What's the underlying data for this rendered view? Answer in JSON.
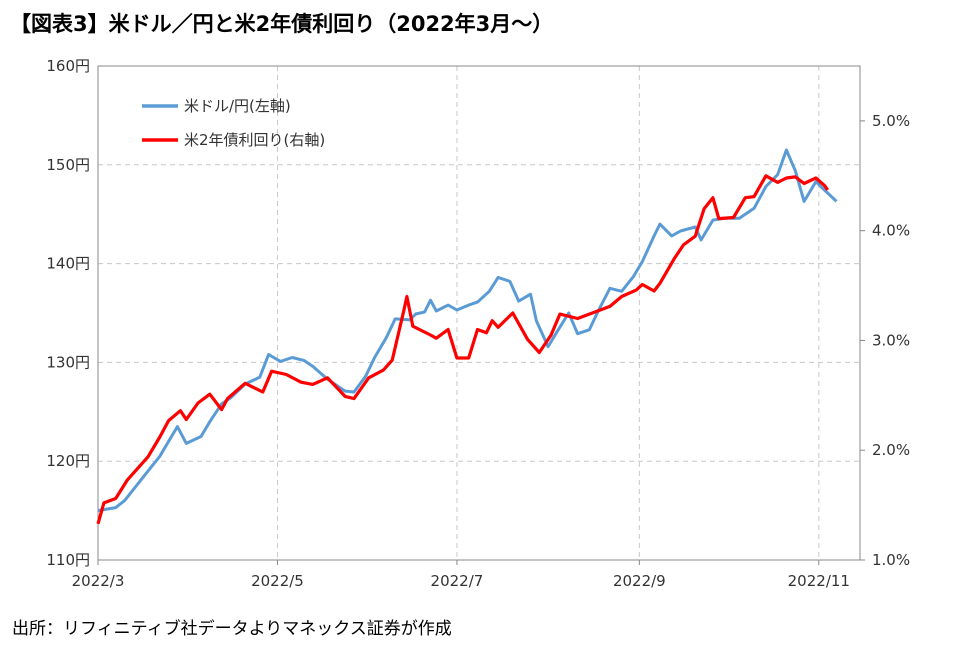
{
  "title": "【図表3】米ドル／円と米2年債利回り（2022年3月～）",
  "source": "出所：リフィニティブ社データよりマネックス証券が作成",
  "colors": {
    "usdjpy": "#5b9bd5",
    "yield": "#ff0000",
    "grid": "#c8c8c8",
    "axis": "#888888"
  },
  "chart_data": {
    "type": "line",
    "x_ticks": [
      "2022/3",
      "2022/5",
      "2022/7",
      "2022/9",
      "2022/11"
    ],
    "x_range": [
      "2022-03-01",
      "2022-11-15"
    ],
    "y_left": {
      "ticks": [
        "110円",
        "120円",
        "130円",
        "140円",
        "150円",
        "160円"
      ],
      "min": 110,
      "max": 160
    },
    "y_right": {
      "ticks": [
        "1.0%",
        "2.0%",
        "3.0%",
        "4.0%",
        "5.0%"
      ],
      "min": 1.0,
      "max": 5.5
    },
    "grid": true,
    "legend_position": "top-left",
    "series": [
      {
        "name": "米ドル/円(左軸)",
        "axis": "left",
        "points": [
          [
            "2022-03-01",
            115.0
          ],
          [
            "2022-03-07",
            115.3
          ],
          [
            "2022-03-10",
            116.0
          ],
          [
            "2022-03-14",
            117.5
          ],
          [
            "2022-03-18",
            119.0
          ],
          [
            "2022-03-22",
            120.5
          ],
          [
            "2022-03-25",
            122.0
          ],
          [
            "2022-03-28",
            123.5
          ],
          [
            "2022-03-31",
            121.8
          ],
          [
            "2022-04-05",
            122.5
          ],
          [
            "2022-04-08",
            124.0
          ],
          [
            "2022-04-12",
            125.8
          ],
          [
            "2022-04-15",
            126.4
          ],
          [
            "2022-04-20",
            127.8
          ],
          [
            "2022-04-25",
            128.5
          ],
          [
            "2022-04-28",
            130.8
          ],
          [
            "2022-05-02",
            130.1
          ],
          [
            "2022-05-06",
            130.5
          ],
          [
            "2022-05-10",
            130.2
          ],
          [
            "2022-05-13",
            129.6
          ],
          [
            "2022-05-18",
            128.3
          ],
          [
            "2022-05-24",
            127.1
          ],
          [
            "2022-05-27",
            127.0
          ],
          [
            "2022-05-31",
            128.6
          ],
          [
            "2022-06-03",
            130.5
          ],
          [
            "2022-06-07",
            132.5
          ],
          [
            "2022-06-10",
            134.4
          ],
          [
            "2022-06-15",
            134.3
          ],
          [
            "2022-06-17",
            134.9
          ],
          [
            "2022-06-20",
            135.1
          ],
          [
            "2022-06-22",
            136.3
          ],
          [
            "2022-06-24",
            135.2
          ],
          [
            "2022-06-28",
            135.8
          ],
          [
            "2022-07-01",
            135.3
          ],
          [
            "2022-07-05",
            135.8
          ],
          [
            "2022-07-08",
            136.1
          ],
          [
            "2022-07-12",
            137.2
          ],
          [
            "2022-07-15",
            138.6
          ],
          [
            "2022-07-19",
            138.2
          ],
          [
            "2022-07-22",
            136.2
          ],
          [
            "2022-07-26",
            136.9
          ],
          [
            "2022-07-28",
            134.2
          ],
          [
            "2022-08-01",
            131.6
          ],
          [
            "2022-08-04",
            133.1
          ],
          [
            "2022-08-08",
            135.0
          ],
          [
            "2022-08-11",
            132.9
          ],
          [
            "2022-08-15",
            133.3
          ],
          [
            "2022-08-18",
            135.2
          ],
          [
            "2022-08-22",
            137.5
          ],
          [
            "2022-08-26",
            137.2
          ],
          [
            "2022-08-30",
            138.7
          ],
          [
            "2022-09-02",
            140.2
          ],
          [
            "2022-09-06",
            142.8
          ],
          [
            "2022-09-08",
            144.0
          ],
          [
            "2022-09-12",
            142.8
          ],
          [
            "2022-09-15",
            143.3
          ],
          [
            "2022-09-20",
            143.7
          ],
          [
            "2022-09-22",
            142.4
          ],
          [
            "2022-09-26",
            144.4
          ],
          [
            "2022-09-30",
            144.6
          ],
          [
            "2022-10-05",
            144.6
          ],
          [
            "2022-10-10",
            145.6
          ],
          [
            "2022-10-14",
            147.8
          ],
          [
            "2022-10-18",
            149.0
          ],
          [
            "2022-10-21",
            151.5
          ],
          [
            "2022-10-24",
            149.4
          ],
          [
            "2022-10-27",
            146.3
          ],
          [
            "2022-10-31",
            148.3
          ],
          [
            "2022-11-02",
            147.7
          ],
          [
            "2022-11-07",
            146.3
          ]
        ]
      },
      {
        "name": "米2年債利回り(右軸)",
        "axis": "right",
        "points": [
          [
            "2022-03-01",
            1.33
          ],
          [
            "2022-03-03",
            1.52
          ],
          [
            "2022-03-07",
            1.56
          ],
          [
            "2022-03-11",
            1.73
          ],
          [
            "2022-03-15",
            1.85
          ],
          [
            "2022-03-18",
            1.94
          ],
          [
            "2022-03-22",
            2.12
          ],
          [
            "2022-03-25",
            2.27
          ],
          [
            "2022-03-29",
            2.36
          ],
          [
            "2022-03-31",
            2.28
          ],
          [
            "2022-04-04",
            2.43
          ],
          [
            "2022-04-08",
            2.51
          ],
          [
            "2022-04-12",
            2.37
          ],
          [
            "2022-04-14",
            2.47
          ],
          [
            "2022-04-20",
            2.61
          ],
          [
            "2022-04-26",
            2.53
          ],
          [
            "2022-04-29",
            2.72
          ],
          [
            "2022-05-04",
            2.69
          ],
          [
            "2022-05-09",
            2.62
          ],
          [
            "2022-05-13",
            2.6
          ],
          [
            "2022-05-18",
            2.66
          ],
          [
            "2022-05-24",
            2.49
          ],
          [
            "2022-05-27",
            2.47
          ],
          [
            "2022-06-01",
            2.66
          ],
          [
            "2022-06-06",
            2.73
          ],
          [
            "2022-06-09",
            2.82
          ],
          [
            "2022-06-13",
            3.28
          ],
          [
            "2022-06-14",
            3.4
          ],
          [
            "2022-06-16",
            3.13
          ],
          [
            "2022-06-22",
            3.05
          ],
          [
            "2022-06-24",
            3.02
          ],
          [
            "2022-06-28",
            3.1
          ],
          [
            "2022-07-01",
            2.84
          ],
          [
            "2022-07-05",
            2.84
          ],
          [
            "2022-07-08",
            3.1
          ],
          [
            "2022-07-11",
            3.07
          ],
          [
            "2022-07-13",
            3.18
          ],
          [
            "2022-07-15",
            3.12
          ],
          [
            "2022-07-20",
            3.25
          ],
          [
            "2022-07-25",
            3.01
          ],
          [
            "2022-07-29",
            2.89
          ],
          [
            "2022-08-02",
            3.05
          ],
          [
            "2022-08-05",
            3.24
          ],
          [
            "2022-08-11",
            3.2
          ],
          [
            "2022-08-16",
            3.25
          ],
          [
            "2022-08-22",
            3.31
          ],
          [
            "2022-08-26",
            3.4
          ],
          [
            "2022-08-31",
            3.46
          ],
          [
            "2022-09-02",
            3.51
          ],
          [
            "2022-09-06",
            3.45
          ],
          [
            "2022-09-08",
            3.52
          ],
          [
            "2022-09-13",
            3.75
          ],
          [
            "2022-09-16",
            3.87
          ],
          [
            "2022-09-20",
            3.95
          ],
          [
            "2022-09-23",
            4.2
          ],
          [
            "2022-09-26",
            4.3
          ],
          [
            "2022-09-28",
            4.11
          ],
          [
            "2022-10-03",
            4.12
          ],
          [
            "2022-10-07",
            4.3
          ],
          [
            "2022-10-10",
            4.31
          ],
          [
            "2022-10-14",
            4.5
          ],
          [
            "2022-10-18",
            4.44
          ],
          [
            "2022-10-21",
            4.48
          ],
          [
            "2022-10-24",
            4.49
          ],
          [
            "2022-10-27",
            4.43
          ],
          [
            "2022-10-31",
            4.48
          ],
          [
            "2022-11-03",
            4.41
          ],
          [
            "2022-11-04",
            4.37
          ]
        ]
      }
    ]
  }
}
